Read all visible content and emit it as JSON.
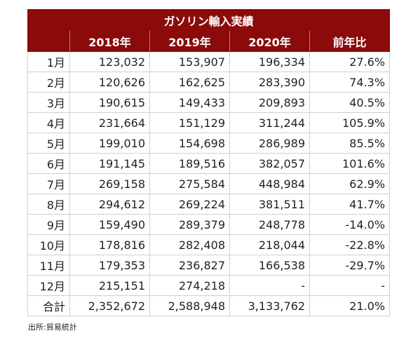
{
  "table": {
    "title": "ガソリン輸入実績",
    "headers": [
      "",
      "2018年",
      "2019年",
      "2020年",
      "前年比"
    ],
    "rows": [
      [
        "1月",
        "123,032",
        "153,907",
        "196,334",
        "27.6%"
      ],
      [
        "2月",
        "120,626",
        "162,625",
        "283,390",
        "74.3%"
      ],
      [
        "3月",
        "190,615",
        "149,433",
        "209,893",
        "40.5%"
      ],
      [
        "4月",
        "231,664",
        "151,129",
        "311,244",
        "105.9%"
      ],
      [
        "5月",
        "199,010",
        "154,698",
        "286,989",
        "85.5%"
      ],
      [
        "6月",
        "191,145",
        "189,516",
        "382,057",
        "101.6%"
      ],
      [
        "7月",
        "269,158",
        "275,584",
        "448,984",
        "62.9%"
      ],
      [
        "8月",
        "294,612",
        "269,224",
        "381,511",
        "41.7%"
      ],
      [
        "9月",
        "159,490",
        "289,379",
        "248,778",
        "-14.0%"
      ],
      [
        "10月",
        "178,816",
        "282,408",
        "218,044",
        "-22.8%"
      ],
      [
        "11月",
        "179,353",
        "236,827",
        "166,538",
        "-29.7%"
      ],
      [
        "12月",
        "215,151",
        "274,218",
        "-",
        "-"
      ],
      [
        "合計",
        "2,352,672",
        "2,588,948",
        "3,133,762",
        "21.0%"
      ]
    ]
  },
  "source": "出所:貿易統計",
  "colors": {
    "header_bg": "#8b0a0a",
    "header_text": "#ffffff",
    "border": "#cfcfcf"
  }
}
